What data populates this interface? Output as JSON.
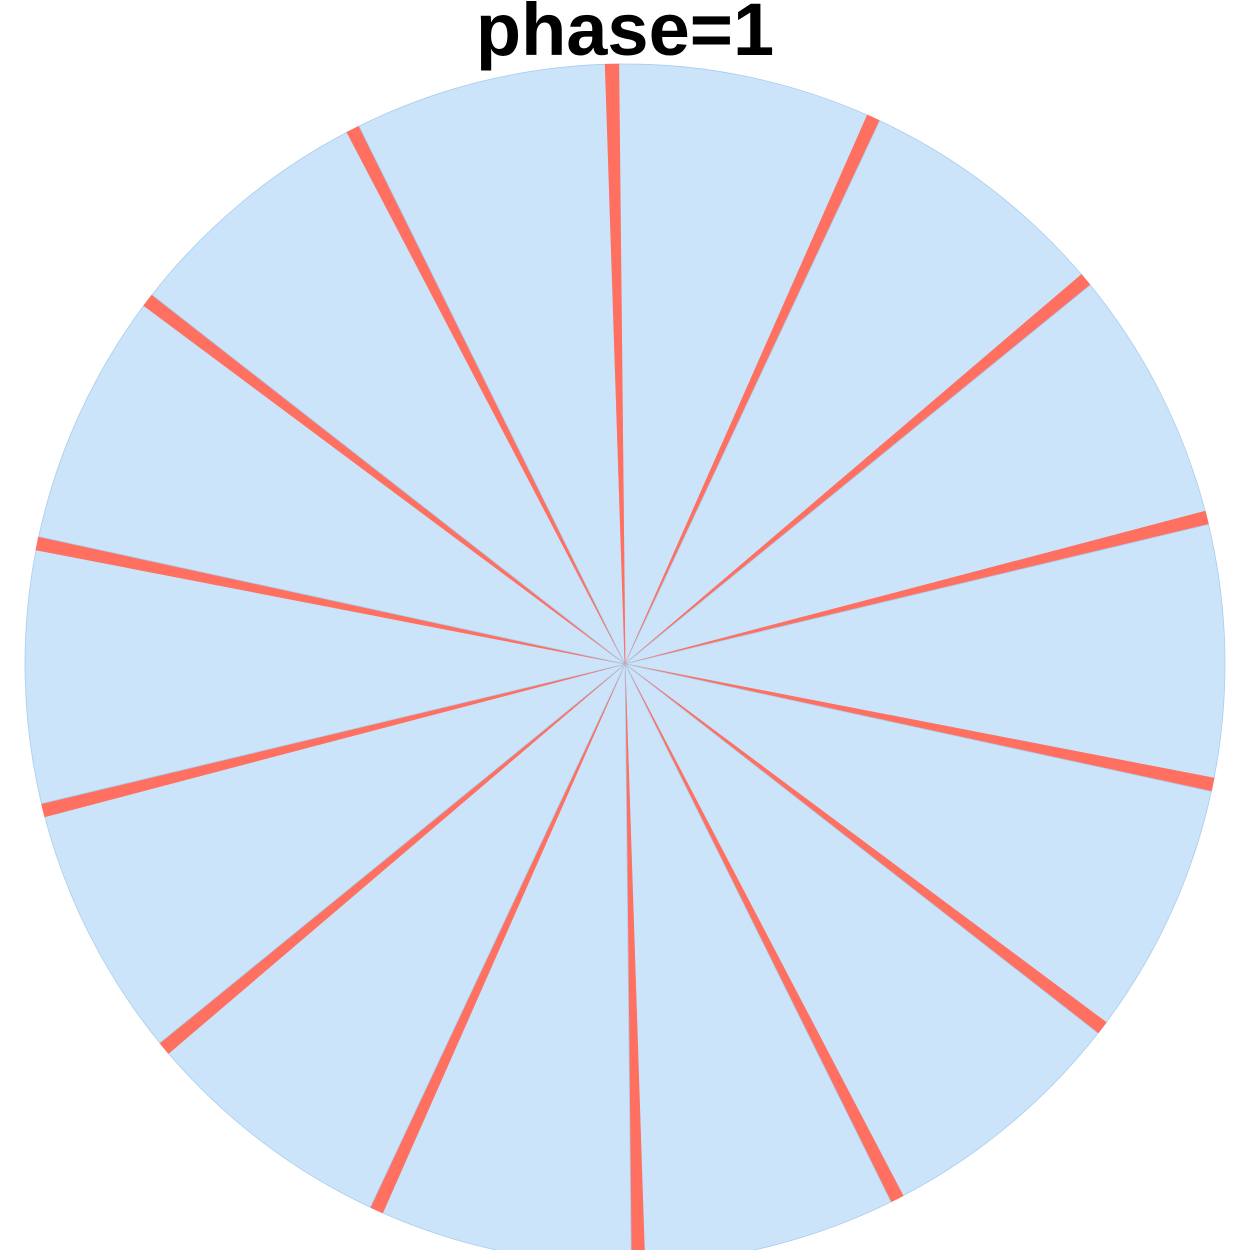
{
  "chart_data": {
    "type": "pie",
    "title": "phase=1",
    "slice_count": 28,
    "pattern": {
      "large_value": 0.95,
      "small_value": 0.05
    },
    "colors": {
      "large": "#cce4fa",
      "small": "#ff7061",
      "edge": "#a9cdee"
    },
    "legend": "none"
  }
}
